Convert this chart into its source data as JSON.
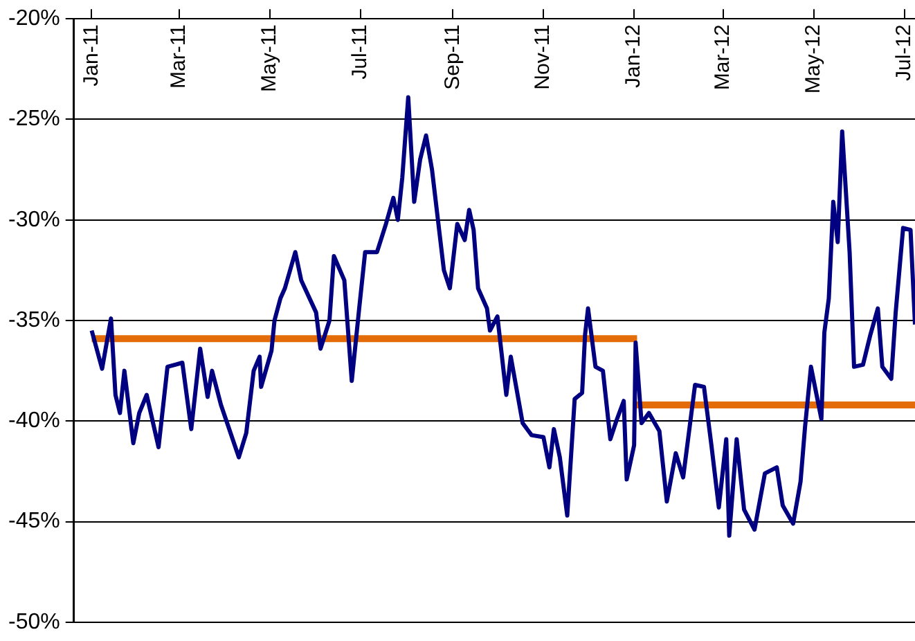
{
  "chart_data": {
    "type": "line",
    "grid": "y",
    "xlim": [
      "2010-12-20",
      "2012-07-08"
    ],
    "xticks": [
      {
        "value": "2011-01-01",
        "label": "Jan-11"
      },
      {
        "value": "2011-03-01",
        "label": "Mar-11"
      },
      {
        "value": "2011-05-01",
        "label": "May-11"
      },
      {
        "value": "2011-07-01",
        "label": "Jul-11"
      },
      {
        "value": "2011-09-01",
        "label": "Sep-11"
      },
      {
        "value": "2011-11-01",
        "label": "Nov-11"
      },
      {
        "value": "2012-01-01",
        "label": "Jan-12"
      },
      {
        "value": "2012-03-01",
        "label": "Mar-12"
      },
      {
        "value": "2012-05-01",
        "label": "May-12"
      },
      {
        "value": "2012-07-01",
        "label": "Jul-12"
      }
    ],
    "ylim": [
      -50,
      -20
    ],
    "yticks": [
      {
        "value": -50,
        "label": "-50%"
      },
      {
        "value": -45,
        "label": "-45%"
      },
      {
        "value": -40,
        "label": "-40%"
      },
      {
        "value": -35,
        "label": "-35%"
      },
      {
        "value": -30,
        "label": "-30%"
      },
      {
        "value": -25,
        "label": "-25%"
      },
      {
        "value": -20,
        "label": "-20%"
      }
    ],
    "series": [
      {
        "color": "#000080",
        "x": [
          "2011-01-01",
          "2011-01-08",
          "2011-01-14",
          "2011-01-17",
          "2011-01-20",
          "2011-01-23",
          "2011-01-29",
          "2011-02-02",
          "2011-02-07",
          "2011-02-15",
          "2011-02-21",
          "2011-03-03",
          "2011-03-09",
          "2011-03-15",
          "2011-03-20",
          "2011-03-23",
          "2011-03-29",
          "2011-04-10",
          "2011-04-15",
          "2011-04-20",
          "2011-04-24",
          "2011-04-25",
          "2011-05-02",
          "2011-05-04",
          "2011-05-08",
          "2011-05-11",
          "2011-05-18",
          "2011-05-22",
          "2011-06-01",
          "2011-06-04",
          "2011-06-10",
          "2011-06-13",
          "2011-06-20",
          "2011-06-25",
          "2011-06-30",
          "2011-07-04",
          "2011-07-12",
          "2011-07-18",
          "2011-07-23",
          "2011-07-26",
          "2011-07-29",
          "2011-08-02",
          "2011-08-06",
          "2011-08-10",
          "2011-08-14",
          "2011-08-18",
          "2011-08-22",
          "2011-08-26",
          "2011-08-30",
          "2011-09-04",
          "2011-09-09",
          "2011-09-12",
          "2011-09-15",
          "2011-09-18",
          "2011-09-24",
          "2011-09-26",
          "2011-10-01",
          "2011-10-07",
          "2011-10-10",
          "2011-10-18",
          "2011-10-24",
          "2011-11-01",
          "2011-11-05",
          "2011-11-08",
          "2011-11-12",
          "2011-11-17",
          "2011-11-22",
          "2011-11-27",
          "2011-11-29",
          "2011-12-01",
          "2011-12-06",
          "2011-12-11",
          "2011-12-16",
          "2011-12-20",
          "2011-12-25",
          "2011-12-27",
          "2012-01-01",
          "2012-01-02",
          "2012-01-06",
          "2012-01-11",
          "2012-01-18",
          "2012-01-23",
          "2012-01-29",
          "2012-02-03",
          "2012-02-11",
          "2012-02-17",
          "2012-02-22",
          "2012-02-27",
          "2012-03-03",
          "2012-03-05",
          "2012-03-10",
          "2012-03-15",
          "2012-03-22",
          "2012-03-29",
          "2012-04-06",
          "2012-04-10",
          "2012-04-17",
          "2012-04-22",
          "2012-04-25",
          "2012-04-29",
          "2012-05-06",
          "2012-05-08",
          "2012-05-11",
          "2012-05-14",
          "2012-05-17",
          "2012-05-20",
          "2012-05-25",
          "2012-05-28",
          "2012-06-03",
          "2012-06-08",
          "2012-06-13",
          "2012-06-16",
          "2012-06-22",
          "2012-06-25",
          "2012-06-30",
          "2012-07-05",
          "2012-07-08"
        ],
        "values": [
          -35.5,
          -37.4,
          -34.9,
          -38.7,
          -39.6,
          -37.5,
          -41.1,
          -39.6,
          -38.7,
          -41.3,
          -37.3,
          -37.1,
          -40.4,
          -36.4,
          -38.8,
          -37.5,
          -39.2,
          -41.8,
          -40.6,
          -37.5,
          -36.8,
          -38.3,
          -36.5,
          -35.0,
          -33.9,
          -33.4,
          -31.6,
          -33.0,
          -34.6,
          -36.4,
          -35.0,
          -31.8,
          -33.0,
          -38.0,
          -34.4,
          -31.6,
          -31.6,
          -30.2,
          -28.9,
          -30.0,
          -27.9,
          -23.9,
          -29.1,
          -27.0,
          -25.8,
          -27.5,
          -30.0,
          -32.5,
          -33.4,
          -30.2,
          -31.0,
          -29.5,
          -30.5,
          -33.4,
          -34.4,
          -35.5,
          -34.8,
          -38.7,
          -36.8,
          -40.1,
          -40.7,
          -40.8,
          -42.3,
          -40.4,
          -41.8,
          -44.7,
          -38.9,
          -38.6,
          -35.7,
          -34.4,
          -37.3,
          -37.5,
          -40.9,
          -40.0,
          -39.0,
          -42.9,
          -41.2,
          -36.1,
          -40.1,
          -39.6,
          -40.5,
          -44.0,
          -41.6,
          -42.8,
          -38.2,
          -38.3,
          -41.2,
          -44.3,
          -40.9,
          -45.7,
          -40.9,
          -44.4,
          -45.4,
          -42.6,
          -42.3,
          -44.2,
          -45.1,
          -43.0,
          -40.3,
          -37.3,
          -39.9,
          -35.6,
          -33.9,
          -29.1,
          -31.1,
          -25.6,
          -31.6,
          -37.3,
          -37.2,
          -35.7,
          -34.4,
          -37.3,
          -37.9,
          -34.6,
          -30.4,
          -30.5,
          -35.2
        ]
      },
      {
        "color": "#e36c09",
        "x": [
          "2011-01-01",
          "2012-01-03"
        ],
        "values": [
          -35.9,
          -35.9
        ]
      },
      {
        "color": "#e36c09",
        "x": [
          "2012-01-02",
          "2012-07-08"
        ],
        "values": [
          -39.2,
          -39.2
        ]
      }
    ]
  }
}
